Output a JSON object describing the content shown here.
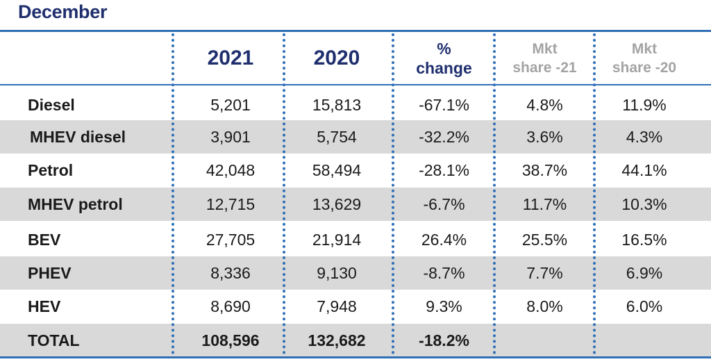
{
  "title": "December",
  "columns": {
    "y2021": "2021",
    "y2020": "2020",
    "pct_line1": "%",
    "pct_line2": "change",
    "mkt21_line1": "Mkt",
    "mkt21_line2": "share -21",
    "mkt20_line1": "Mkt",
    "mkt20_line2": "share -20"
  },
  "rows": [
    {
      "label": "Diesel",
      "y2021": "5,201",
      "y2020": "15,813",
      "pct": "-67.1%",
      "mkt21": "4.8%",
      "mkt20": "11.9%"
    },
    {
      "label": "MHEV diesel",
      "y2021": "3,901",
      "y2020": "5,754",
      "pct": "-32.2%",
      "mkt21": "3.6%",
      "mkt20": "4.3%"
    },
    {
      "label": "Petrol",
      "y2021": "42,048",
      "y2020": "58,494",
      "pct": "-28.1%",
      "mkt21": "38.7%",
      "mkt20": "44.1%"
    },
    {
      "label": "MHEV petrol",
      "y2021": "12,715",
      "y2020": "13,629",
      "pct": "-6.7%",
      "mkt21": "11.7%",
      "mkt20": "10.3%"
    },
    {
      "label": "BEV",
      "y2021": "27,705",
      "y2020": "21,914",
      "pct": "26.4%",
      "mkt21": "25.5%",
      "mkt20": "16.5%"
    },
    {
      "label": "PHEV",
      "y2021": "8,336",
      "y2020": "9,130",
      "pct": "-8.7%",
      "mkt21": "7.7%",
      "mkt20": "6.9%"
    },
    {
      "label": "HEV",
      "y2021": "8,690",
      "y2020": "7,948",
      "pct": "9.3%",
      "mkt21": "8.0%",
      "mkt20": "6.0%"
    },
    {
      "label": "TOTAL",
      "y2021": "108,596",
      "y2020": "132,682",
      "pct": "-18.2%",
      "mkt21": "",
      "mkt20": ""
    }
  ],
  "colors": {
    "title": "#1f2f6e",
    "rule": "#2f6fb6",
    "shade": "#d9d9d9",
    "mkt_header": "#a3a3a3"
  }
}
